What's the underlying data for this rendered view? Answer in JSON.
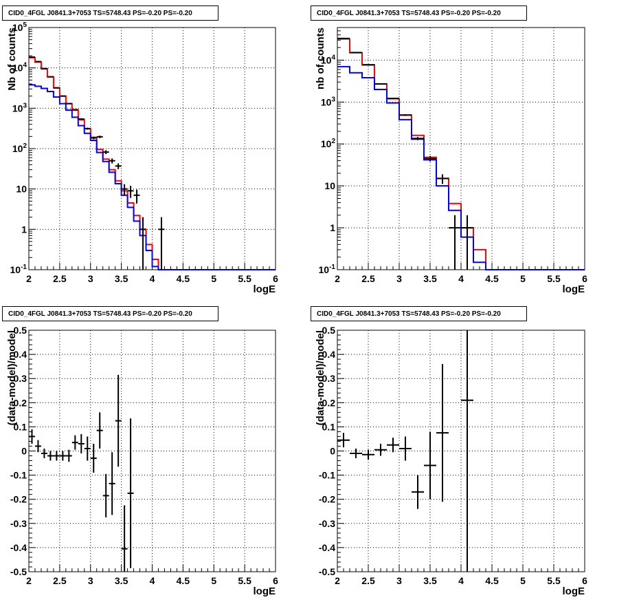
{
  "colors": {
    "total_model": "#ff0000",
    "component_model": "#0000ff",
    "data": "#000000"
  },
  "chart_data": [
    {
      "type": "histogram",
      "title": "CID0_4FGL J0841.3+7053 TS=5748.43 PS=-0.20 PS=-0.20",
      "xlabel": "logE",
      "ylabel": "Nb of counts",
      "xlim": [
        2,
        6
      ],
      "ylim": [
        0.1,
        100000
      ],
      "yscale": "log",
      "grid": true,
      "x_ticks": [
        "2",
        "2.5",
        "3",
        "3.5",
        "4",
        "4.5",
        "5",
        "5.5",
        "6"
      ],
      "y_ticks": [
        "10^{-1}",
        "1",
        "10",
        "10^{2}",
        "10^{3}",
        "10^{4}",
        "10^{5}"
      ],
      "bin_edges": [
        2.0,
        2.1,
        2.2,
        2.3,
        2.4,
        2.5,
        2.6,
        2.7,
        2.8,
        2.9,
        3.0,
        3.1,
        3.2,
        3.3,
        3.4,
        3.5,
        3.6,
        3.7,
        3.8,
        3.9,
        4.0,
        4.1,
        4.2,
        4.3,
        4.4,
        4.5,
        4.6,
        4.7,
        4.8,
        4.9,
        5.0,
        5.1,
        5.2,
        5.3,
        5.4,
        5.5,
        5.6,
        5.7,
        5.8,
        5.9,
        6.0
      ],
      "series": [
        {
          "color": "#ff0000",
          "values": [
            18000,
            14000,
            9500,
            6000,
            3200,
            2000,
            1300,
            900,
            520,
            310,
            190,
            95,
            55,
            30,
            16,
            9,
            4.5,
            2.2,
            1.0,
            0.42,
            0.18,
            0.1,
            0.1,
            0.1,
            0.1,
            0.1,
            0.1,
            0.1,
            0.1,
            0.1,
            0.1,
            0.1,
            0.1,
            0.1,
            0.1,
            0.1,
            0.1,
            0.1,
            0.1,
            0.1
          ]
        },
        {
          "color": "#0000ff",
          "values": [
            3800,
            3500,
            3100,
            2600,
            1900,
            1300,
            900,
            600,
            370,
            240,
            160,
            80,
            48,
            26,
            13.5,
            7,
            3.5,
            1.6,
            0.7,
            0.3,
            0.12,
            0.1,
            0.1,
            0.1,
            0.1,
            0.1,
            0.1,
            0.1,
            0.1,
            0.1,
            0.1,
            0.1,
            0.1,
            0.1,
            0.1,
            0.1,
            0.1,
            0.1,
            0.1,
            0.1
          ]
        }
      ],
      "points": [
        {
          "x": 2.05,
          "y": 18500
        },
        {
          "x": 2.15,
          "y": 14300
        },
        {
          "x": 2.25,
          "y": 9600
        },
        {
          "x": 2.35,
          "y": 6000
        },
        {
          "x": 2.45,
          "y": 3200
        },
        {
          "x": 2.55,
          "y": 2000
        },
        {
          "x": 2.65,
          "y": 1300
        },
        {
          "x": 2.75,
          "y": 920
        },
        {
          "x": 2.85,
          "y": 540
        },
        {
          "x": 2.95,
          "y": 313
        },
        {
          "x": 3.05,
          "y": 184
        },
        {
          "x": 3.15,
          "y": 196
        },
        {
          "x": 3.25,
          "y": 82
        },
        {
          "x": 3.35,
          "y": 50
        },
        {
          "x": 3.45,
          "y": 37
        },
        {
          "x": 3.55,
          "y": 10
        },
        {
          "x": 3.65,
          "y": 9
        },
        {
          "x": 3.75,
          "y": 7
        },
        {
          "x": 3.85,
          "y": 1
        },
        {
          "x": 4.15,
          "y": 1
        }
      ]
    },
    {
      "type": "histogram",
      "title": "CID0_4FGL J0841.3+7053 TS=5748.43 PS=-0.20 PS=-0.20",
      "xlabel": "logE",
      "ylabel": "nb of counts",
      "xlim": [
        2,
        6
      ],
      "ylim": [
        0.1,
        60000
      ],
      "yscale": "log",
      "grid": true,
      "x_ticks": [
        "2",
        "2.5",
        "3",
        "3.5",
        "4",
        "4.5",
        "5",
        "5.5",
        "6"
      ],
      "y_ticks": [
        "10^{-1}",
        "1",
        "10",
        "10^{2}",
        "10^{3}",
        "10^{4}"
      ],
      "bin_edges": [
        2.0,
        2.2,
        2.4,
        2.6,
        2.8,
        3.0,
        3.2,
        3.4,
        3.6,
        3.8,
        4.0,
        4.2,
        4.4,
        4.6,
        4.8,
        5.0,
        5.2,
        5.4,
        5.6,
        5.8,
        6.0
      ],
      "series": [
        {
          "color": "#ff0000",
          "values": [
            32000,
            15000,
            7800,
            2700,
            1200,
            490,
            160,
            48,
            15,
            3.8,
            1.0,
            0.3,
            0.1,
            0.1,
            0.1,
            0.1,
            0.1,
            0.1,
            0.1,
            0.1
          ]
        },
        {
          "color": "#0000ff",
          "values": [
            7000,
            5000,
            3800,
            2000,
            950,
            380,
            130,
            42,
            10,
            2.6,
            0.6,
            0.15,
            0.1,
            0.1,
            0.1,
            0.1,
            0.1,
            0.1,
            0.1,
            0.1
          ]
        }
      ],
      "points": [
        {
          "x": 2.1,
          "y": 33000
        },
        {
          "x": 2.3,
          "y": 15200
        },
        {
          "x": 2.5,
          "y": 7700
        },
        {
          "x": 2.7,
          "y": 2700
        },
        {
          "x": 2.9,
          "y": 1220
        },
        {
          "x": 3.1,
          "y": 490
        },
        {
          "x": 3.3,
          "y": 135
        },
        {
          "x": 3.5,
          "y": 45
        },
        {
          "x": 3.7,
          "y": 15
        },
        {
          "x": 3.9,
          "y": 1
        },
        {
          "x": 4.1,
          "y": 1
        }
      ]
    },
    {
      "type": "scatter",
      "title": "CID0_4FGL J0841.3+7053 TS=5748.43 PS=-0.20 PS=-0.20",
      "xlabel": "logE",
      "ylabel": "(data-model)/model",
      "xlim": [
        2,
        6
      ],
      "ylim": [
        -0.5,
        0.5
      ],
      "grid": true,
      "x_ticks": [
        "2",
        "2.5",
        "3",
        "3.5",
        "4",
        "4.5",
        "5",
        "5.5",
        "6"
      ],
      "y_ticks": [
        "-0.5",
        "-0.4",
        "-0.3",
        "-0.2",
        "-0.1",
        "0",
        "0.1",
        "0.2",
        "0.3",
        "0.4",
        "0.5"
      ],
      "points": [
        {
          "x": 2.05,
          "y": 0.06,
          "xerr": 0.05,
          "yerr": 0.03
        },
        {
          "x": 2.15,
          "y": 0.02,
          "xerr": 0.05,
          "yerr": 0.025
        },
        {
          "x": 2.25,
          "y": -0.01,
          "xerr": 0.05,
          "yerr": 0.02
        },
        {
          "x": 2.35,
          "y": -0.02,
          "xerr": 0.05,
          "yerr": 0.02
        },
        {
          "x": 2.45,
          "y": -0.02,
          "xerr": 0.05,
          "yerr": 0.02
        },
        {
          "x": 2.55,
          "y": -0.02,
          "xerr": 0.05,
          "yerr": 0.02
        },
        {
          "x": 2.65,
          "y": -0.02,
          "xerr": 0.05,
          "yerr": 0.025
        },
        {
          "x": 2.75,
          "y": 0.035,
          "xerr": 0.05,
          "yerr": 0.03
        },
        {
          "x": 2.85,
          "y": 0.03,
          "xerr": 0.05,
          "yerr": 0.04
        },
        {
          "x": 2.95,
          "y": 0.01,
          "xerr": 0.05,
          "yerr": 0.05
        },
        {
          "x": 3.05,
          "y": -0.03,
          "xerr": 0.05,
          "yerr": 0.06
        },
        {
          "x": 3.15,
          "y": 0.085,
          "xerr": 0.05,
          "yerr": 0.075
        },
        {
          "x": 3.25,
          "y": -0.185,
          "xerr": 0.05,
          "yerr": 0.09
        },
        {
          "x": 3.35,
          "y": -0.135,
          "xerr": 0.05,
          "yerr": 0.13
        },
        {
          "x": 3.45,
          "y": 0.125,
          "xerr": 0.05,
          "yerr": 0.19
        },
        {
          "x": 3.55,
          "y": -0.405,
          "xerr": 0.05,
          "yerr": 0.18
        },
        {
          "x": 3.65,
          "y": -0.175,
          "xerr": 0.05,
          "yerr": 0.31
        }
      ]
    },
    {
      "type": "scatter",
      "title": "CID0_4FGL J0841.3+7053 TS=5748.43 PS=-0.20 PS=-0.20",
      "xlabel": "logE",
      "ylabel": "(data-model)/model",
      "xlim": [
        2,
        6
      ],
      "ylim": [
        -0.5,
        0.5
      ],
      "grid": true,
      "x_ticks": [
        "2",
        "2.5",
        "3",
        "3.5",
        "4",
        "4.5",
        "5",
        "5.5",
        "6"
      ],
      "y_ticks": [
        "-0.5",
        "-0.4",
        "-0.3",
        "-0.2",
        "-0.1",
        "0",
        "0.1",
        "0.2",
        "0.3",
        "0.4",
        "0.5"
      ],
      "points": [
        {
          "x": 2.1,
          "y": 0.045,
          "xerr": 0.1,
          "yerr": 0.03
        },
        {
          "x": 2.3,
          "y": -0.01,
          "xerr": 0.1,
          "yerr": 0.02
        },
        {
          "x": 2.5,
          "y": -0.015,
          "xerr": 0.1,
          "yerr": 0.02
        },
        {
          "x": 2.7,
          "y": 0.005,
          "xerr": 0.1,
          "yerr": 0.025
        },
        {
          "x": 2.9,
          "y": 0.025,
          "xerr": 0.1,
          "yerr": 0.03
        },
        {
          "x": 3.1,
          "y": 0.01,
          "xerr": 0.1,
          "yerr": 0.05
        },
        {
          "x": 3.3,
          "y": -0.17,
          "xerr": 0.1,
          "yerr": 0.07
        },
        {
          "x": 3.5,
          "y": -0.06,
          "xerr": 0.1,
          "yerr": 0.14
        },
        {
          "x": 3.7,
          "y": 0.075,
          "xerr": 0.1,
          "yerr": 0.285
        },
        {
          "x": 4.1,
          "y": 0.21,
          "xerr": 0.1,
          "yerr": 0.9
        }
      ]
    }
  ]
}
